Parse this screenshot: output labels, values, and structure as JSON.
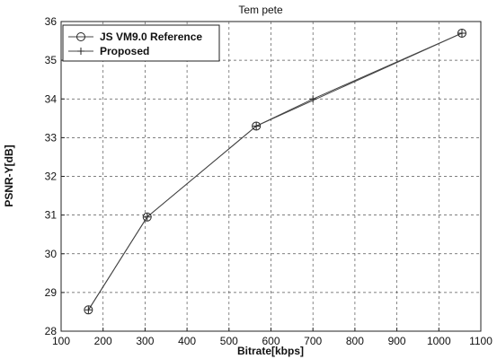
{
  "chart_data": {
    "type": "line",
    "title": "Tem pete",
    "xlabel": "Bitrate[kbps]",
    "ylabel": "PSNR-Y[dB]",
    "xlim": [
      100,
      1100
    ],
    "ylim": [
      28,
      36
    ],
    "xticks": [
      100,
      200,
      300,
      400,
      500,
      600,
      700,
      800,
      900,
      1000,
      1100
    ],
    "yticks": [
      28,
      29,
      30,
      31,
      32,
      33,
      34,
      35,
      36
    ],
    "grid": true,
    "legend_position": "top-left",
    "series": [
      {
        "name": "JS VM9.0 Reference",
        "marker": "circle",
        "x": [
          165,
          305,
          565,
          1055
        ],
        "y": [
          28.55,
          30.95,
          33.3,
          35.7
        ]
      },
      {
        "name": "Proposed",
        "marker": "plus",
        "x": [
          165,
          305,
          565,
          700,
          1055
        ],
        "y": [
          28.55,
          30.95,
          33.3,
          34.0,
          35.7
        ]
      }
    ]
  }
}
